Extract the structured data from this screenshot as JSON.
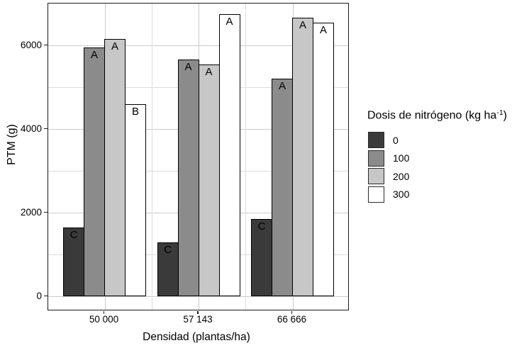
{
  "chart_data": {
    "type": "bar",
    "title": "",
    "xlabel": "Densidad (plantas/ha)",
    "ylabel": "PTM (g)",
    "categories": [
      "50 000",
      "57 143",
      "66 666"
    ],
    "series": [
      {
        "name": "0",
        "color": "#3a3a3a",
        "values": [
          1650,
          1300,
          1850
        ],
        "bar_labels": [
          "C",
          "C",
          "C"
        ]
      },
      {
        "name": "100",
        "color": "#8b8b8b",
        "values": [
          5950,
          5660,
          5210
        ],
        "bar_labels": [
          "A",
          "A",
          "A"
        ]
      },
      {
        "name": "200",
        "color": "#c7c7c7",
        "values": [
          6150,
          5540,
          6660
        ],
        "bar_labels": [
          "A",
          "A",
          "A"
        ]
      },
      {
        "name": "300",
        "color": "#ffffff",
        "values": [
          4600,
          6750,
          6550
        ],
        "bar_labels": [
          "B",
          "A",
          "A"
        ]
      }
    ],
    "y_ticks": [
      0,
      2000,
      4000,
      6000
    ],
    "y_minor_ticks": [
      1000,
      3000,
      5000
    ],
    "ylim": [
      0,
      7000
    ],
    "grid": true,
    "legend_position": "right",
    "bar_outline_color": "#000000"
  },
  "legend": {
    "title_pre": "Dosis de nitrógeno (kg ha",
    "title_sup": "-1",
    "title_post": ")"
  },
  "colors": {
    "grid_major": "#cbcbcb",
    "grid_minor": "#dddddd",
    "panel_border": "#1c1c1c",
    "text": "#000000"
  }
}
